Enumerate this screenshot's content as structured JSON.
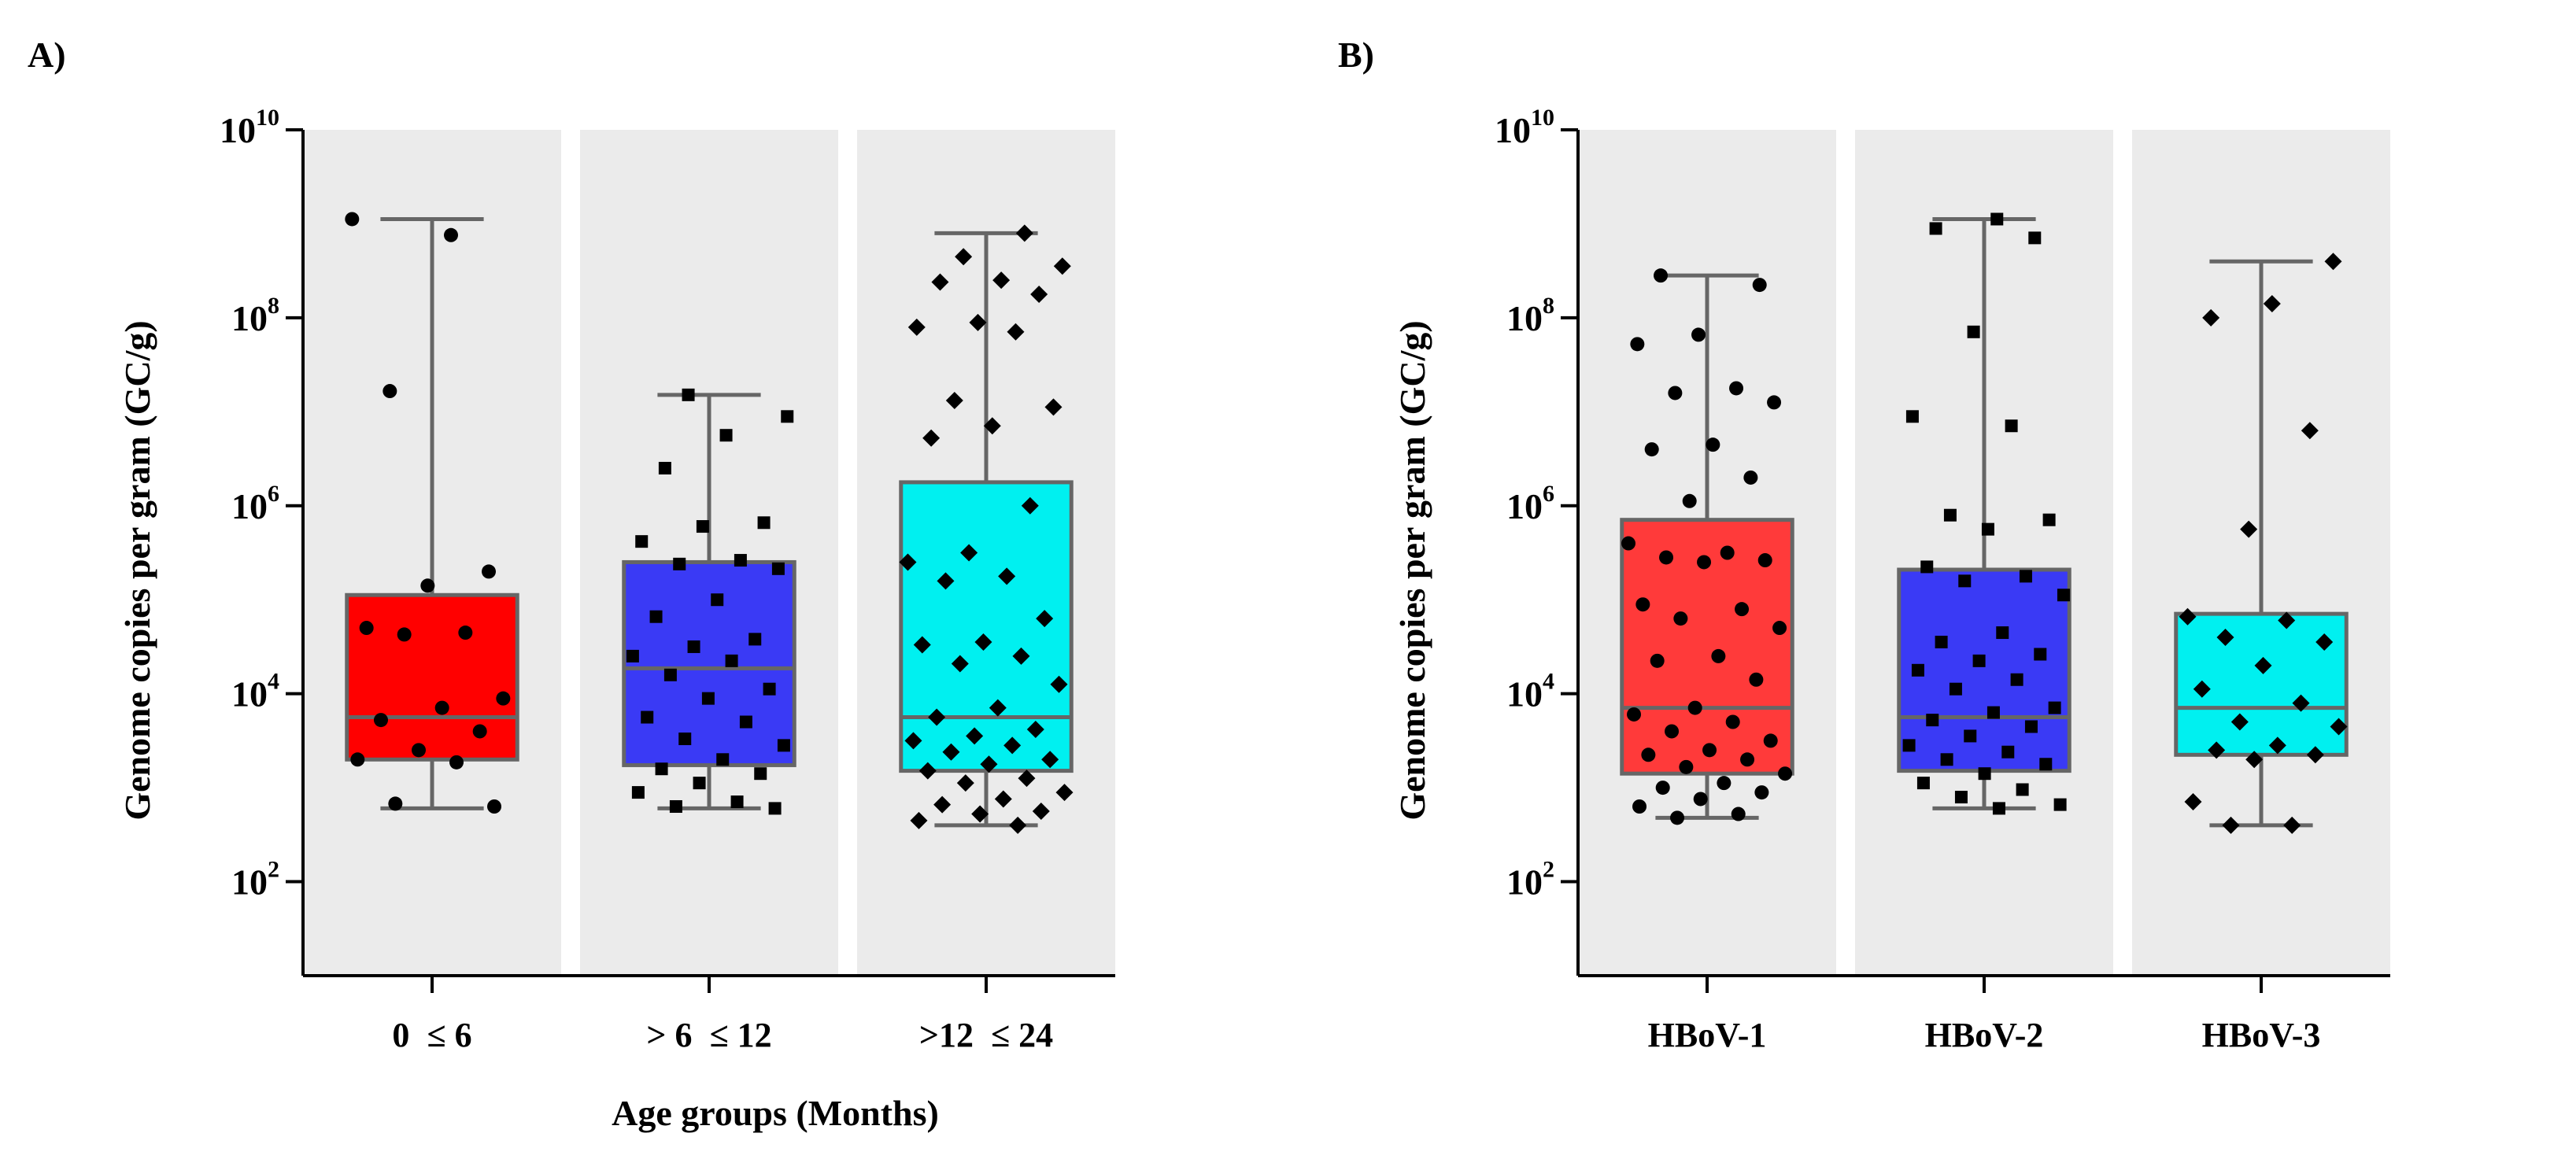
{
  "chart_data": [
    {
      "panel": "A)",
      "type": "box",
      "ylabel": "Genome copies per gram (GC/g)",
      "xlabel": "Age groups (Months)",
      "yscale": "log10",
      "ylim_exp": [
        1,
        10
      ],
      "ytick_base": "10",
      "ytick_exps": [
        "2",
        "4",
        "6",
        "8",
        "10"
      ],
      "grid": false,
      "categories": [
        "0  ≤ 6",
        "> 6  ≤ 12",
        ">12  ≤ 24"
      ],
      "groups": [
        {
          "name": "0  ≤ 6",
          "color": "#ff0000",
          "marker": "circle",
          "whisker_low": 2.78,
          "q1": 3.3,
          "median": 3.75,
          "q3": 5.05,
          "whisker_high": 9.05,
          "points": [
            9.05,
            8.88,
            7.22,
            5.3,
            5.15,
            4.7,
            4.65,
            4.63,
            3.95,
            3.85,
            3.72,
            3.6,
            3.4,
            3.3,
            3.27,
            2.83,
            2.8
          ]
        },
        {
          "name": "> 6  ≤ 12",
          "color": "#3a3af5",
          "marker": "square",
          "whisker_low": 2.78,
          "q1": 3.24,
          "median": 4.27,
          "q3": 5.4,
          "whisker_high": 7.18,
          "points": [
            7.18,
            6.95,
            6.75,
            6.4,
            5.82,
            5.78,
            5.62,
            5.42,
            5.38,
            5.33,
            5.0,
            4.82,
            4.58,
            4.5,
            4.4,
            4.35,
            4.2,
            4.05,
            3.95,
            3.75,
            3.7,
            3.52,
            3.45,
            3.3,
            3.2,
            3.15,
            3.05,
            2.95,
            2.85,
            2.8,
            2.78
          ]
        },
        {
          "name": ">12  ≤ 24",
          "color": "#00f0f0",
          "marker": "diamond",
          "whisker_low": 2.6,
          "q1": 3.18,
          "median": 3.75,
          "q3": 6.25,
          "whisker_high": 8.9,
          "points": [
            8.9,
            8.65,
            8.55,
            8.4,
            8.38,
            8.25,
            7.95,
            7.9,
            7.85,
            7.12,
            7.05,
            6.85,
            6.72,
            6.0,
            5.5,
            5.4,
            5.25,
            5.2,
            4.8,
            4.55,
            4.52,
            4.4,
            4.32,
            4.1,
            3.85,
            3.75,
            3.62,
            3.55,
            3.5,
            3.45,
            3.38,
            3.3,
            3.25,
            3.18,
            3.1,
            3.05,
            2.95,
            2.88,
            2.82,
            2.75,
            2.72,
            2.65,
            2.6
          ]
        }
      ]
    },
    {
      "panel": "B)",
      "type": "box",
      "ylabel": "Genome copies per gram (GC/g)",
      "xlabel": "",
      "yscale": "log10",
      "ylim_exp": [
        1,
        10
      ],
      "ytick_base": "10",
      "ytick_exps": [
        "2",
        "4",
        "6",
        "8",
        "10"
      ],
      "grid": false,
      "categories": [
        "HBoV-1",
        "HBoV-2",
        "HBoV-3"
      ],
      "groups": [
        {
          "name": "HBoV-1",
          "color": "#ff3a3a",
          "marker": "circle",
          "whisker_low": 2.68,
          "q1": 3.15,
          "median": 3.85,
          "q3": 5.85,
          "whisker_high": 8.45,
          "points": [
            8.45,
            8.35,
            7.82,
            7.72,
            7.25,
            7.2,
            7.1,
            6.65,
            6.6,
            6.3,
            6.05,
            5.6,
            5.5,
            5.45,
            5.42,
            5.4,
            4.95,
            4.9,
            4.8,
            4.7,
            4.4,
            4.35,
            4.15,
            3.85,
            3.78,
            3.7,
            3.6,
            3.5,
            3.4,
            3.35,
            3.3,
            3.22,
            3.15,
            3.05,
            3.0,
            2.95,
            2.88,
            2.8,
            2.72,
            2.68
          ]
        },
        {
          "name": "HBoV-2",
          "color": "#3a3af5",
          "marker": "square",
          "whisker_low": 2.78,
          "q1": 3.18,
          "median": 3.75,
          "q3": 5.32,
          "whisker_high": 9.05,
          "points": [
            9.05,
            8.95,
            8.85,
            7.85,
            6.95,
            6.85,
            5.9,
            5.85,
            5.75,
            5.35,
            5.25,
            5.2,
            5.05,
            4.65,
            4.55,
            4.42,
            4.35,
            4.25,
            4.15,
            4.05,
            3.85,
            3.8,
            3.72,
            3.65,
            3.55,
            3.45,
            3.38,
            3.3,
            3.25,
            3.15,
            3.05,
            2.98,
            2.9,
            2.82,
            2.78
          ]
        },
        {
          "name": "HBoV-3",
          "color": "#00f0f0",
          "marker": "diamond",
          "whisker_low": 2.6,
          "q1": 3.35,
          "median": 3.85,
          "q3": 4.85,
          "whisker_high": 8.6,
          "points": [
            8.6,
            8.15,
            8.0,
            6.8,
            5.75,
            4.82,
            4.78,
            4.6,
            4.55,
            4.3,
            4.05,
            3.9,
            3.7,
            3.65,
            3.45,
            3.4,
            3.35,
            3.3,
            2.85,
            2.6,
            2.6
          ]
        }
      ]
    }
  ]
}
